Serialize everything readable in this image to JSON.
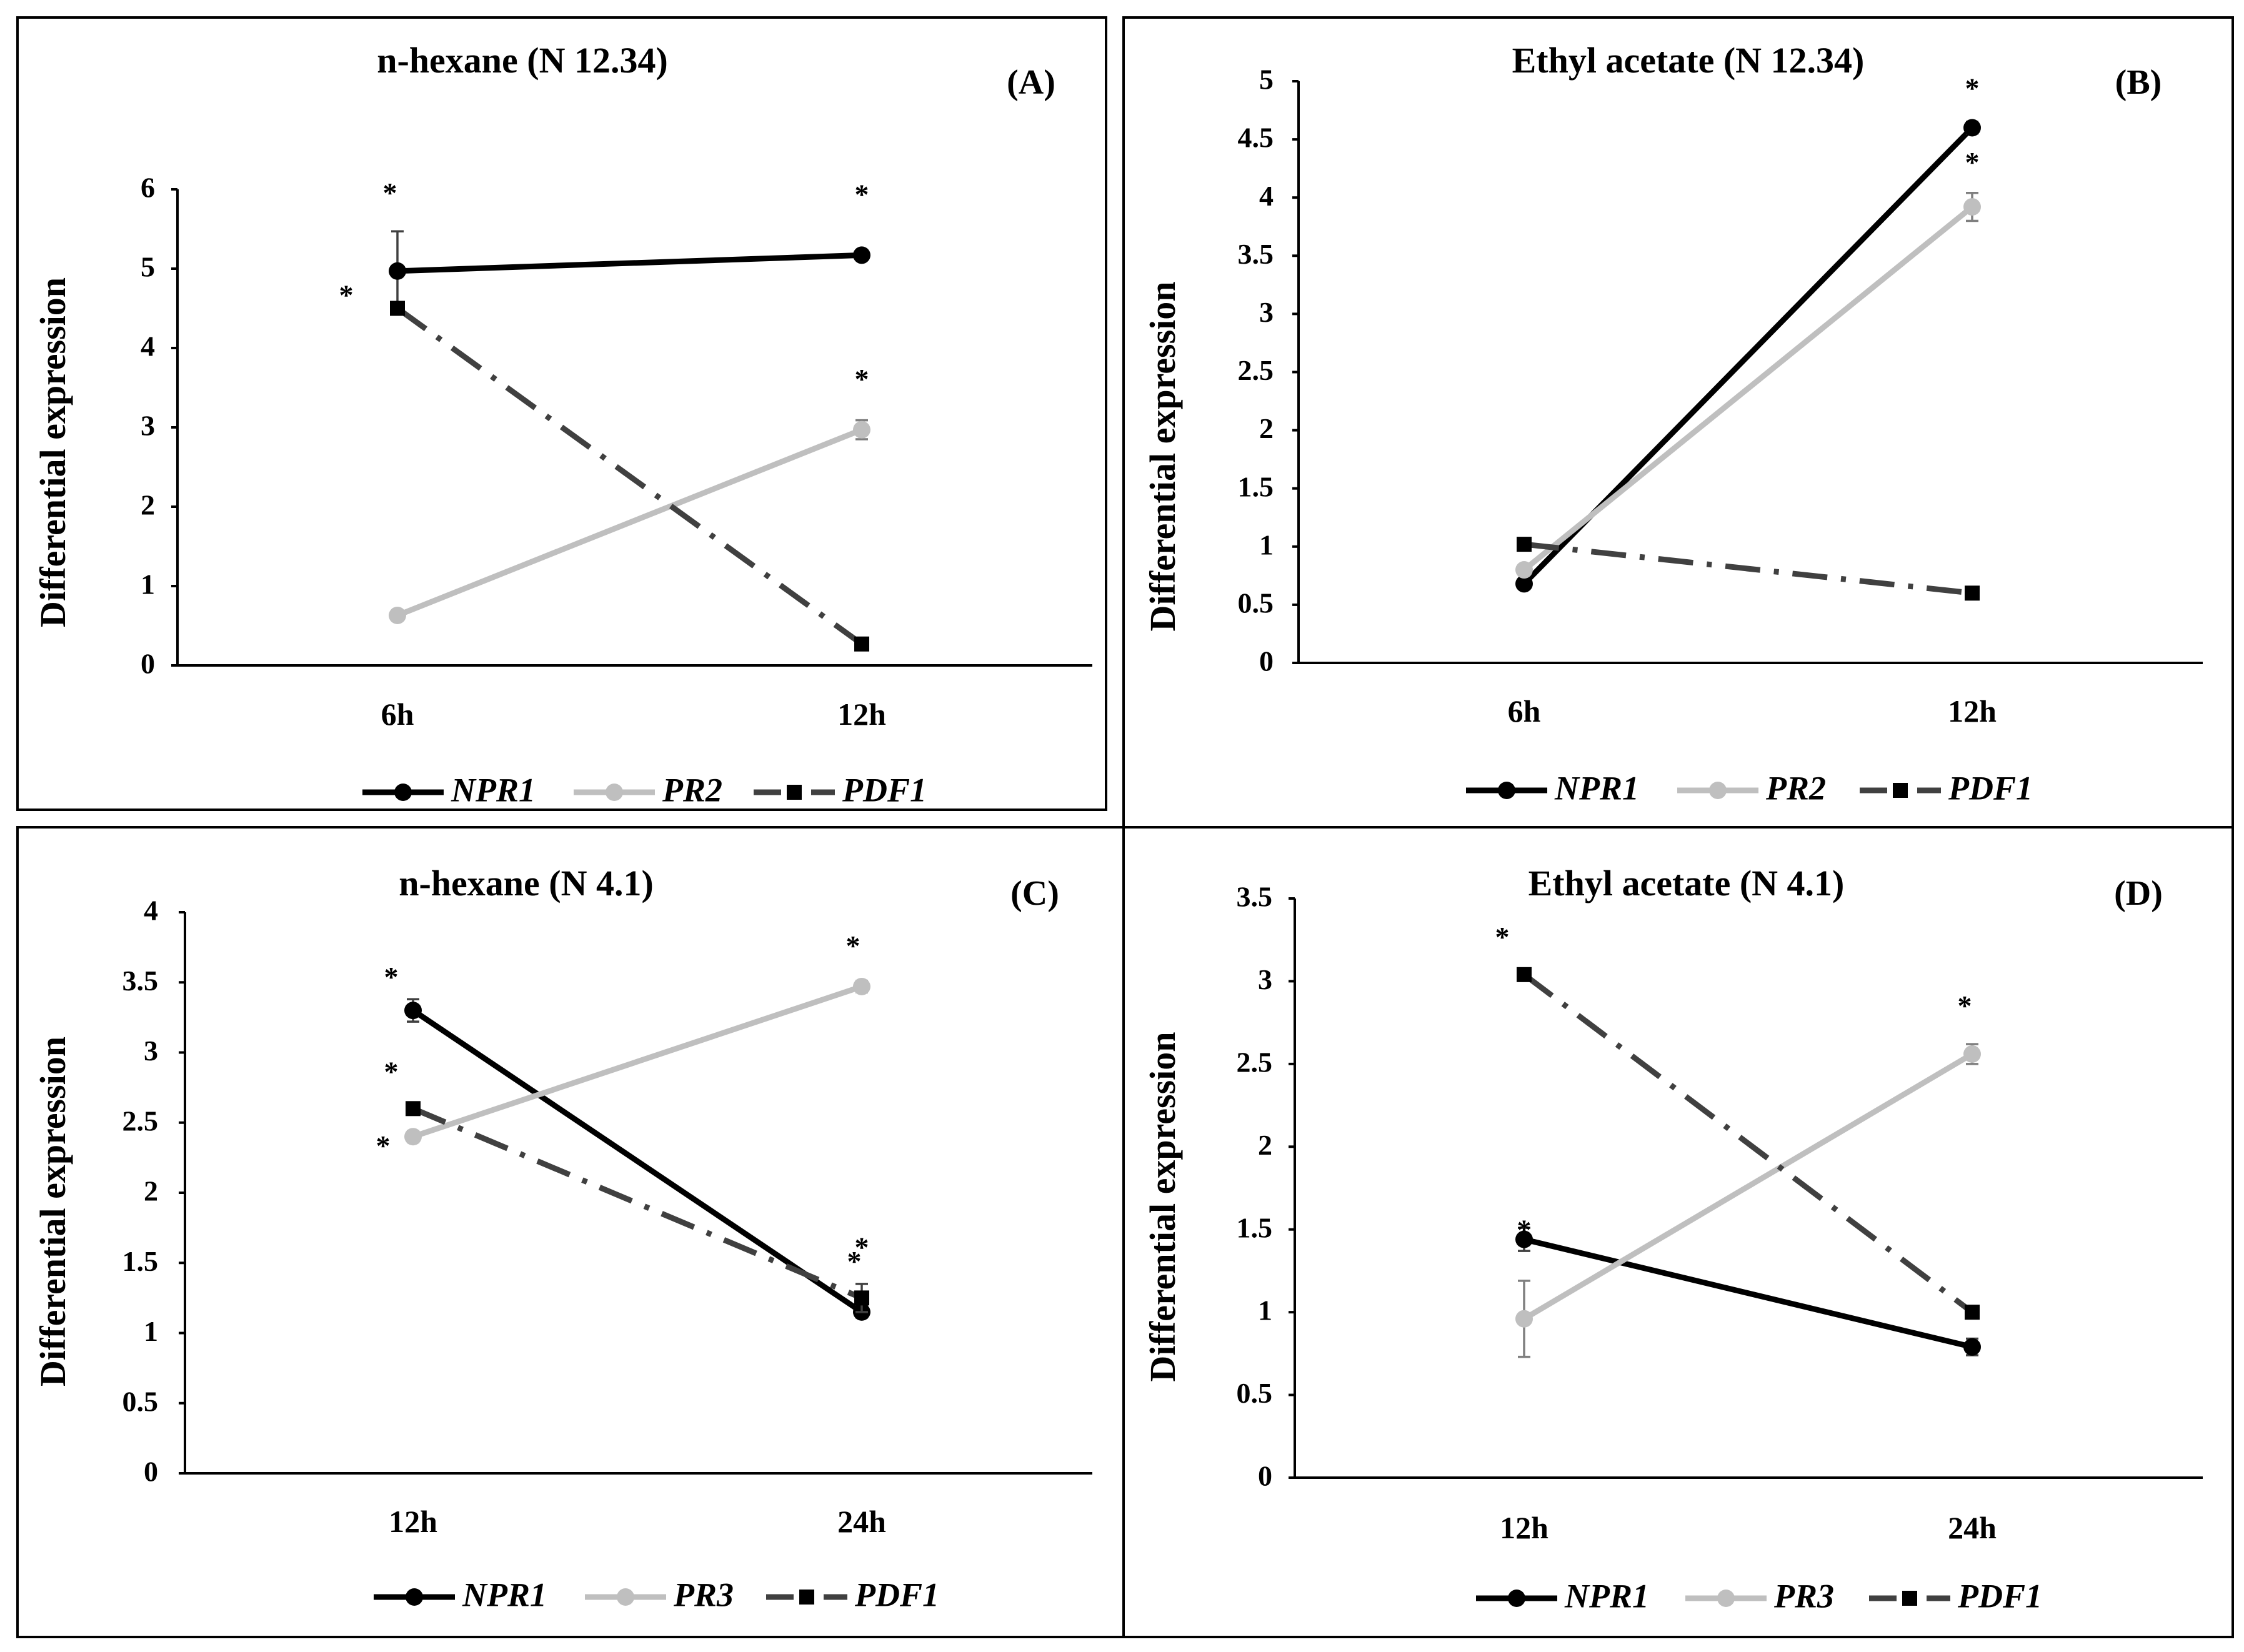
{
  "chart_data": [
    {
      "panel": "(A)",
      "type": "line",
      "title": "n-hexane (N 12.34)",
      "ylabel": "Differential expression",
      "categories": [
        "6h",
        "12h"
      ],
      "yticks": [
        "0",
        "1",
        "2",
        "3",
        "4",
        "5",
        "6"
      ],
      "ylim": [
        0,
        6
      ],
      "series": [
        {
          "name": "NPR1",
          "values": [
            4.97,
            5.17
          ],
          "err": [
            0.5,
            0.05
          ],
          "stars": [
            "*",
            "*"
          ],
          "color": "#000000",
          "style": "solid",
          "marker": "circle"
        },
        {
          "name": "PR2",
          "values": [
            0.63,
            2.97
          ],
          "err": [
            0.05,
            0.12
          ],
          "stars": [
            "",
            "*"
          ],
          "color": "#bfbfbf",
          "style": "solid",
          "marker": "circle"
        },
        {
          "name": "PDF1",
          "values": [
            4.5,
            0.27
          ],
          "err": [
            0.08,
            0.05
          ],
          "stars": [
            "*",
            ""
          ],
          "color": "#404040",
          "style": "dashdot",
          "marker": "square"
        }
      ]
    },
    {
      "panel": "(B)",
      "type": "line",
      "title": "Ethyl acetate (N 12.34)",
      "ylabel": "Differential expression",
      "categories": [
        "6h",
        "12h"
      ],
      "yticks": [
        "0",
        "0.5",
        "1",
        "1.5",
        "2",
        "2.5",
        "3",
        "3.5",
        "4",
        "4.5",
        "5"
      ],
      "ylim": [
        0,
        5
      ],
      "series": [
        {
          "name": "NPR1",
          "values": [
            0.68,
            4.6
          ],
          "err": [
            0.03,
            0.05
          ],
          "stars": [
            "",
            "*"
          ],
          "color": "#000000",
          "style": "solid",
          "marker": "circle"
        },
        {
          "name": "PR2",
          "values": [
            0.8,
            3.92
          ],
          "err": [
            0.03,
            0.12
          ],
          "stars": [
            "",
            "*"
          ],
          "color": "#bfbfbf",
          "style": "solid",
          "marker": "circle"
        },
        {
          "name": "PDF1",
          "values": [
            1.02,
            0.6
          ],
          "err": [
            0.03,
            0.03
          ],
          "stars": [
            "",
            ""
          ],
          "color": "#404040",
          "style": "dashdot",
          "marker": "square"
        }
      ]
    },
    {
      "panel": "(C)",
      "type": "line",
      "title": "n-hexane (N 4.1)",
      "ylabel": "Differential expression",
      "categories": [
        "12h",
        "24h"
      ],
      "yticks": [
        "0",
        "0.5",
        "1",
        "1.5",
        "2",
        "2.5",
        "3",
        "3.5",
        "4"
      ],
      "ylim": [
        0,
        4
      ],
      "series": [
        {
          "name": "NPR1",
          "values": [
            3.3,
            1.15
          ],
          "err": [
            0.08,
            0.04
          ],
          "stars": [
            "*",
            "*"
          ],
          "color": "#000000",
          "style": "solid",
          "marker": "circle"
        },
        {
          "name": "PR3",
          "values": [
            2.4,
            3.47
          ],
          "err": [
            0.04,
            0.04
          ],
          "stars": [
            "*",
            "*"
          ],
          "color": "#bfbfbf",
          "style": "solid",
          "marker": "circle"
        },
        {
          "name": "PDF1",
          "values": [
            2.6,
            1.25
          ],
          "err": [
            0.04,
            0.1
          ],
          "stars": [
            "*",
            "*"
          ],
          "color": "#404040",
          "style": "dashdot",
          "marker": "square"
        }
      ]
    },
    {
      "panel": "(D)",
      "type": "line",
      "title": "Ethyl acetate (N 4.1)",
      "ylabel": "Differential expression",
      "categories": [
        "12h",
        "24h"
      ],
      "yticks": [
        "0",
        "0.5",
        "1",
        "1.5",
        "2",
        "2.5",
        "3",
        "3.5"
      ],
      "ylim": [
        0,
        3.5
      ],
      "series": [
        {
          "name": "NPR1",
          "values": [
            1.44,
            0.79
          ],
          "err": [
            0.07,
            0.05
          ],
          "stars": [
            "*",
            ""
          ],
          "color": "#000000",
          "style": "solid",
          "marker": "circle"
        },
        {
          "name": "PR3",
          "values": [
            0.96,
            2.56
          ],
          "err": [
            0.23,
            0.06
          ],
          "stars": [
            "",
            "*"
          ],
          "color": "#bfbfbf",
          "style": "solid",
          "marker": "circle"
        },
        {
          "name": "PDF1",
          "values": [
            3.04,
            1.0
          ],
          "err": [
            0.03,
            0.03
          ],
          "stars": [
            "*",
            ""
          ],
          "color": "#404040",
          "style": "dashdot",
          "marker": "square"
        }
      ]
    }
  ]
}
